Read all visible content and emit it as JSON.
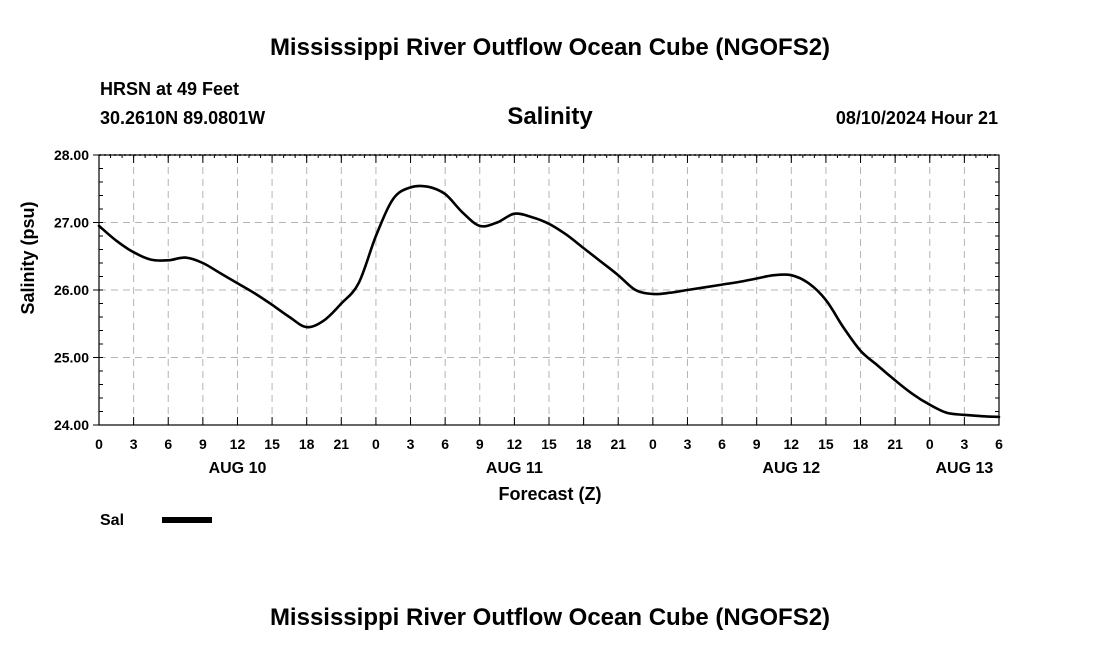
{
  "header": {
    "title": "Mississippi River Outflow Ocean Cube (NGOFS2)",
    "station": "HRSN at 49 Feet",
    "coords": "30.2610N  89.0801W",
    "variable": "Salinity",
    "datetime": "08/10/2024 Hour 21"
  },
  "footer": {
    "title": "Mississippi River Outflow Ocean Cube (NGOFS2)"
  },
  "chart_data": {
    "type": "line",
    "title": "Salinity",
    "xlabel": "Forecast (Z)",
    "ylabel": "Salinity (psu)",
    "xlim": [
      0,
      78
    ],
    "ylim": [
      24.0,
      28.0
    ],
    "grid": true,
    "x_ticks": [
      0,
      3,
      6,
      9,
      12,
      15,
      18,
      21,
      24,
      27,
      30,
      33,
      36,
      39,
      42,
      45,
      48,
      51,
      54,
      57,
      60,
      63,
      66,
      69,
      72,
      75,
      78
    ],
    "x_tick_labels": [
      "0",
      "3",
      "6",
      "9",
      "12",
      "15",
      "18",
      "21",
      "0",
      "3",
      "6",
      "9",
      "12",
      "15",
      "18",
      "21",
      "0",
      "3",
      "6",
      "9",
      "12",
      "15",
      "18",
      "21",
      "0",
      "3",
      "6"
    ],
    "y_ticks": [
      24.0,
      25.0,
      26.0,
      27.0,
      28.0
    ],
    "y_tick_labels": [
      "24.00",
      "25.00",
      "26.00",
      "27.00",
      "28.00"
    ],
    "day_labels": [
      {
        "x": 12,
        "label": "AUG 10"
      },
      {
        "x": 36,
        "label": "AUG 11"
      },
      {
        "x": 60,
        "label": "AUG 12"
      },
      {
        "x": 75,
        "label": "AUG 13"
      }
    ],
    "legend": [
      {
        "name": "Sal",
        "color": "#000000"
      }
    ],
    "series": [
      {
        "name": "Sal",
        "color": "#000000",
        "x": [
          0,
          1.5,
          3,
          4.5,
          6,
          7.5,
          9,
          10.5,
          12,
          13.5,
          15,
          16.5,
          18,
          19.5,
          21,
          22.5,
          24,
          25.5,
          27,
          28.5,
          30,
          31.5,
          33,
          34.5,
          36,
          37.5,
          39,
          40.5,
          42,
          43.5,
          45,
          46.5,
          48,
          49.5,
          51,
          52.5,
          54,
          55.5,
          57,
          58.5,
          60,
          61.5,
          63,
          64.5,
          66,
          67.5,
          69,
          70.5,
          72,
          73.5,
          75,
          76.5,
          78
        ],
        "values": [
          26.95,
          26.73,
          26.56,
          26.45,
          26.44,
          26.48,
          26.4,
          26.25,
          26.1,
          25.95,
          25.78,
          25.6,
          25.45,
          25.55,
          25.8,
          26.1,
          26.8,
          27.35,
          27.52,
          27.53,
          27.42,
          27.15,
          26.95,
          27.0,
          27.13,
          27.08,
          26.98,
          26.82,
          26.62,
          26.42,
          26.22,
          26.0,
          25.94,
          25.96,
          26.0,
          26.04,
          26.08,
          26.12,
          26.17,
          26.22,
          26.22,
          26.1,
          25.85,
          25.45,
          25.1,
          24.88,
          24.66,
          24.46,
          24.3,
          24.18,
          24.15,
          24.13,
          24.12
        ]
      }
    ]
  }
}
